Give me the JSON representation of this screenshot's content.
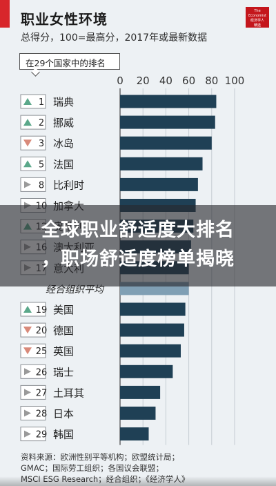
{
  "header": {
    "title": "职业女性环境",
    "subtitle": "总得分，100=最高分，2017年或最新数据",
    "logo_text": "The Economist 经济学人 精选",
    "rank_header": "在29个国家中的排名"
  },
  "banner": {
    "line1": "全球职业舒适度大排名",
    "line2": "，职场舒适度榜单揭晓"
  },
  "sources": [
    "资料来源：欧洲性别平等机构；欧盟统计局；",
    "GMAC；国际劳工组织；各国议会联盟；",
    "MSCI ESG Research；经合组织；《经济学人》"
  ],
  "colors": {
    "accent_red": "#d8262b",
    "bar": "#1f4055",
    "bar_average": "#7f9fb4",
    "up_arrow": "#5ba88a",
    "down_arrow": "#d98a7a",
    "same_arrow": "#9a9a9a"
  },
  "chart_data": {
    "type": "bar",
    "orientation": "horizontal",
    "x_ticks": [
      "0",
      "20",
      "40",
      "60",
      "80",
      "100"
    ],
    "xlim": [
      0,
      100
    ],
    "rows": [
      {
        "rank": "1",
        "trend": "up",
        "country": "瑞典",
        "value": 84
      },
      {
        "rank": "2",
        "trend": "up",
        "country": "挪威",
        "value": 83
      },
      {
        "rank": "3",
        "trend": "down",
        "country": "冰岛",
        "value": 80
      },
      {
        "rank": "5",
        "trend": "up",
        "country": "法国",
        "value": 72
      },
      {
        "rank": "8",
        "trend": "same",
        "country": "比利时",
        "value": 68
      },
      {
        "rank": "10",
        "trend": "same",
        "country": "加拿大",
        "value": 66
      },
      {
        "rank": "12",
        "trend": "up",
        "country": "奥地利",
        "value": 64
      },
      {
        "rank": "16",
        "trend": "same",
        "country": "澳大利亚",
        "value": 62
      },
      {
        "rank": "17",
        "trend": "same",
        "country": "意大利",
        "value": 60
      },
      {
        "rank": "",
        "trend": "none",
        "country": "经合组织平均",
        "value": 60,
        "is_average": true
      },
      {
        "rank": "19",
        "trend": "up",
        "country": "美国",
        "value": 57
      },
      {
        "rank": "20",
        "trend": "down",
        "country": "德国",
        "value": 56
      },
      {
        "rank": "25",
        "trend": "down",
        "country": "英国",
        "value": 53
      },
      {
        "rank": "26",
        "trend": "same",
        "country": "瑞士",
        "value": 46
      },
      {
        "rank": "27",
        "trend": "same",
        "country": "土耳其",
        "value": 35
      },
      {
        "rank": "28",
        "trend": "same",
        "country": "日本",
        "value": 31
      },
      {
        "rank": "29",
        "trend": "same",
        "country": "韩国",
        "value": 25
      }
    ]
  }
}
